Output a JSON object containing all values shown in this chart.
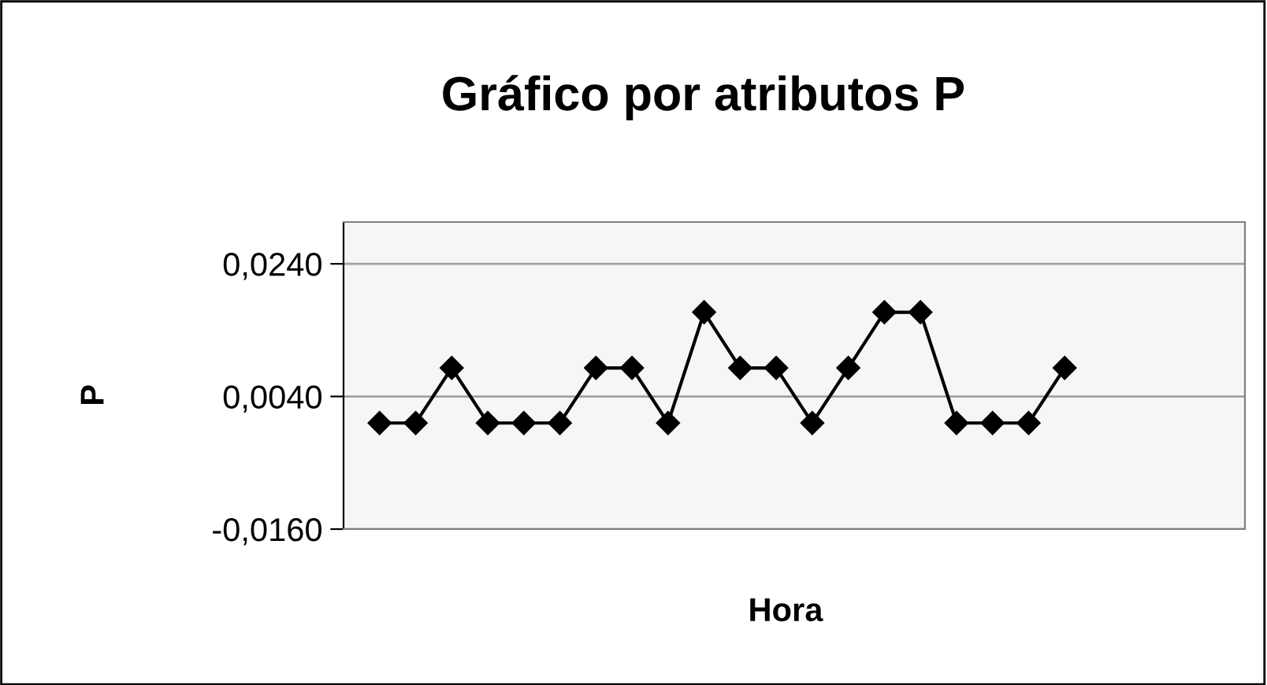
{
  "chart_data": {
    "type": "line",
    "title": "Gráfico por atributos P",
    "xlabel": "Hora",
    "ylabel": "P",
    "categories": [
      null,
      null,
      null,
      null,
      null,
      null,
      null,
      null,
      null,
      null,
      null,
      null,
      null,
      null,
      null,
      null,
      null,
      null,
      null,
      null,
      null,
      null,
      null,
      null,
      null,
      null
    ],
    "series": [
      {
        "color": "#000000",
        "values": [
          null,
          0,
          0,
          0.0083,
          0,
          0,
          0,
          0.0083,
          0.0083,
          0,
          0.0167,
          0.0083,
          0.0083,
          0,
          0.0083,
          0.0167,
          0.0167,
          0,
          0,
          0,
          0.0083,
          null,
          null,
          null,
          null,
          null
        ]
      }
    ],
    "ylim": [
      -0.016,
      0.0303
    ],
    "yticks": [
      {
        "value": -0.016,
        "label": "-0,0160"
      },
      {
        "value": 0.004,
        "label": "0,0040"
      },
      {
        "value": 0.024,
        "label": "0,0240"
      }
    ],
    "grid": "y",
    "marker": "diamond",
    "line_style": "solid",
    "tick_labels": "y"
  }
}
